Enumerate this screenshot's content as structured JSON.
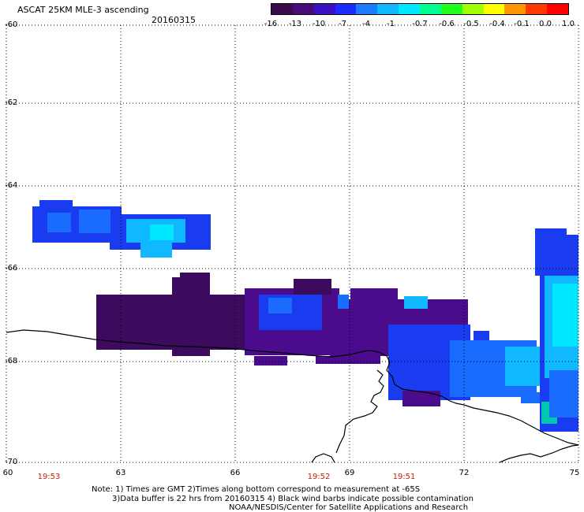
{
  "header": {
    "title": "ASCAT 25KM MLE-3 ascending",
    "date": "20160315"
  },
  "colorbar": {
    "labels": [
      "-16",
      "-13",
      "-10",
      "-7",
      "-4",
      "-1",
      "-0.7",
      "-0.6",
      "-0.5",
      "-0.4",
      "-0.1",
      "0.0",
      "1.0"
    ],
    "colors": [
      "#3a0a4a",
      "#4a0a7a",
      "#3a10c0",
      "#1a2cff",
      "#1a7cff",
      "#10b8ff",
      "#00e8ff",
      "#00ff90",
      "#20ff20",
      "#a0ff00",
      "#ffff00",
      "#ff9800",
      "#ff3a00",
      "#ff0000"
    ]
  },
  "map": {
    "lat_labels": [
      "-60",
      "-62",
      "-64",
      "-66",
      "-68",
      "-70"
    ],
    "lon_labels": [
      "60",
      "63",
      "66",
      "69",
      "72",
      "75"
    ],
    "time_labels": [
      "19:53",
      "19:52",
      "19:51"
    ],
    "data_colors": {
      "dark_purple": "#3c0b5e",
      "purple": "#4a0c8c",
      "blue": "#1a3cf0",
      "mid_blue": "#1a6cff",
      "light_blue": "#10b8ff",
      "cyan": "#00e8ff",
      "teal": "#00c8b0"
    }
  },
  "notes": {
    "line1": "Note: 1) Times are GMT 2)Times along bottom correspond to measurement at -65S",
    "line2": "3)Data buffer is 22 hrs from 20160315 4) Black wind barbs indicate possible contamination",
    "line3": "NOAA/NESDIS/Center for Satellite Applications and Research"
  }
}
